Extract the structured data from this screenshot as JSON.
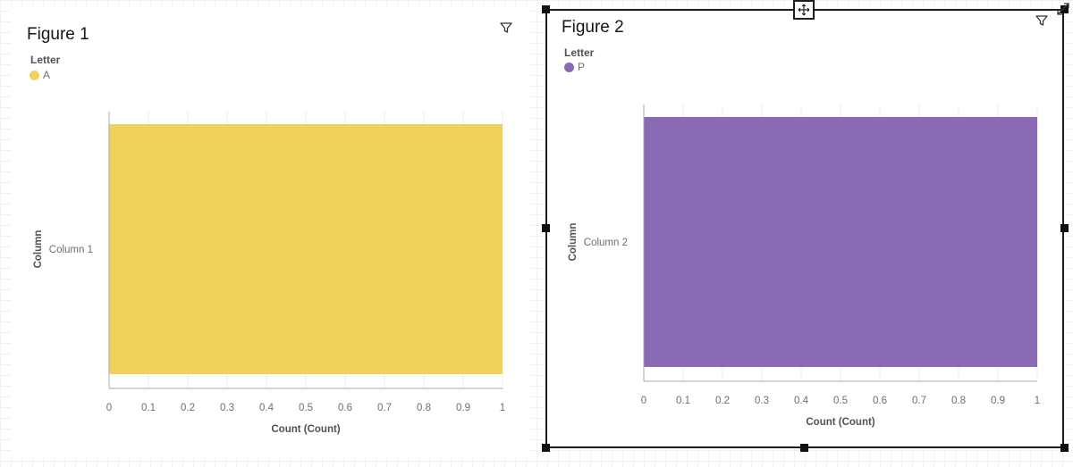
{
  "colors": {
    "figure1_bar": "#f0d15c",
    "figure2_bar": "#8a69b5"
  },
  "chart_data": [
    {
      "type": "bar",
      "orientation": "horizontal",
      "title": "Figure 1",
      "legend_title": "Letter",
      "legend": [
        {
          "label": "A",
          "color": "#f0d15c"
        }
      ],
      "categories": [
        "Column 1"
      ],
      "series": [
        {
          "name": "A",
          "values": [
            1
          ]
        }
      ],
      "xlabel": "Count (Count)",
      "ylabel": "Column",
      "xlim": [
        0,
        1
      ],
      "xticks": [
        "0",
        "0.1",
        "0.2",
        "0.3",
        "0.4",
        "0.5",
        "0.6",
        "0.7",
        "0.8",
        "0.9",
        "1"
      ],
      "legend_position": "top-left",
      "grid": true
    },
    {
      "type": "bar",
      "orientation": "horizontal",
      "title": "Figure 2",
      "legend_title": "Letter",
      "legend": [
        {
          "label": "P",
          "color": "#8a69b5"
        }
      ],
      "categories": [
        "Column 2"
      ],
      "series": [
        {
          "name": "P",
          "values": [
            1
          ]
        }
      ],
      "xlabel": "Count (Count)",
      "ylabel": "Column",
      "xlim": [
        0,
        1
      ],
      "xticks": [
        "0",
        "0.1",
        "0.2",
        "0.3",
        "0.4",
        "0.5",
        "0.6",
        "0.7",
        "0.8",
        "0.9",
        "1"
      ],
      "legend_position": "top-left",
      "grid": true
    }
  ],
  "icons": {
    "filter": "filter-icon",
    "move": "move-icon",
    "expand": "expand-icon"
  }
}
